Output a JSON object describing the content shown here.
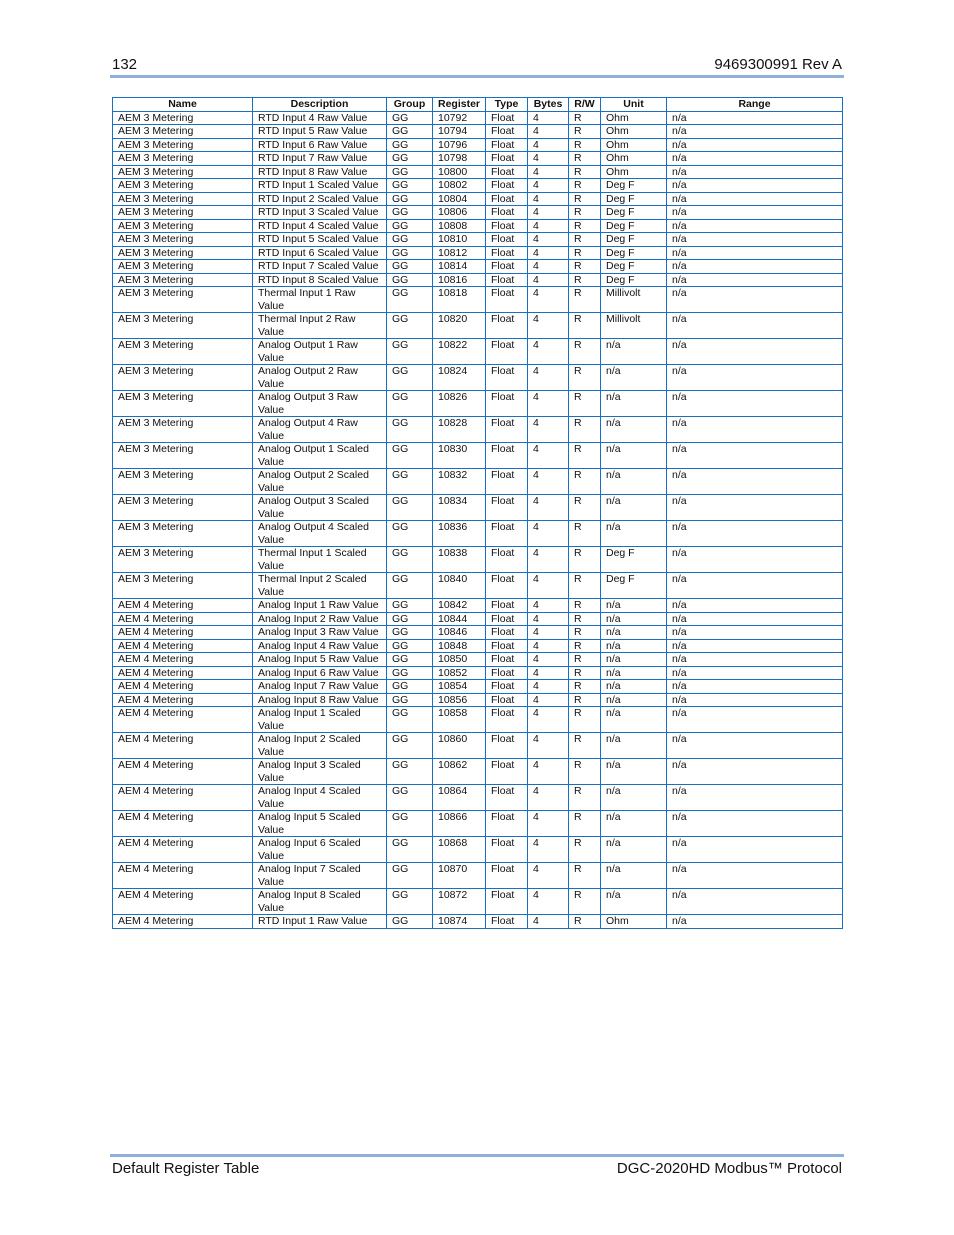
{
  "header": {
    "page_number": "132",
    "doc_id": "9469300991 Rev A"
  },
  "footer": {
    "left": "Default Register Table",
    "right": "DGC-2020HD Modbus™ Protocol"
  },
  "table": {
    "columns": [
      "Name",
      "Description",
      "Group",
      "Register",
      "Type",
      "Bytes",
      "R/W",
      "Unit",
      "Range"
    ],
    "rows": [
      [
        "AEM 3 Metering",
        "RTD Input 4 Raw Value",
        "GG",
        "10792",
        "Float",
        "4",
        "R",
        "Ohm",
        "n/a"
      ],
      [
        "AEM 3 Metering",
        "RTD Input 5 Raw Value",
        "GG",
        "10794",
        "Float",
        "4",
        "R",
        "Ohm",
        "n/a"
      ],
      [
        "AEM 3 Metering",
        "RTD Input 6 Raw Value",
        "GG",
        "10796",
        "Float",
        "4",
        "R",
        "Ohm",
        "n/a"
      ],
      [
        "AEM 3 Metering",
        "RTD Input 7 Raw Value",
        "GG",
        "10798",
        "Float",
        "4",
        "R",
        "Ohm",
        "n/a"
      ],
      [
        "AEM 3 Metering",
        "RTD Input 8 Raw Value",
        "GG",
        "10800",
        "Float",
        "4",
        "R",
        "Ohm",
        "n/a"
      ],
      [
        "AEM 3 Metering",
        "RTD Input 1 Scaled Value",
        "GG",
        "10802",
        "Float",
        "4",
        "R",
        "Deg F",
        "n/a"
      ],
      [
        "AEM 3 Metering",
        "RTD Input 2 Scaled Value",
        "GG",
        "10804",
        "Float",
        "4",
        "R",
        "Deg F",
        "n/a"
      ],
      [
        "AEM 3 Metering",
        "RTD Input 3 Scaled Value",
        "GG",
        "10806",
        "Float",
        "4",
        "R",
        "Deg F",
        "n/a"
      ],
      [
        "AEM 3 Metering",
        "RTD Input 4 Scaled Value",
        "GG",
        "10808",
        "Float",
        "4",
        "R",
        "Deg F",
        "n/a"
      ],
      [
        "AEM 3 Metering",
        "RTD Input 5 Scaled Value",
        "GG",
        "10810",
        "Float",
        "4",
        "R",
        "Deg F",
        "n/a"
      ],
      [
        "AEM 3 Metering",
        "RTD Input 6 Scaled Value",
        "GG",
        "10812",
        "Float",
        "4",
        "R",
        "Deg F",
        "n/a"
      ],
      [
        "AEM 3 Metering",
        "RTD Input 7 Scaled Value",
        "GG",
        "10814",
        "Float",
        "4",
        "R",
        "Deg F",
        "n/a"
      ],
      [
        "AEM 3 Metering",
        "RTD Input 8 Scaled Value",
        "GG",
        "10816",
        "Float",
        "4",
        "R",
        "Deg F",
        "n/a"
      ],
      [
        "AEM 3 Metering",
        "Thermal Input 1 Raw Value",
        "GG",
        "10818",
        "Float",
        "4",
        "R",
        "Millivolt",
        "n/a"
      ],
      [
        "AEM 3 Metering",
        "Thermal Input 2 Raw Value",
        "GG",
        "10820",
        "Float",
        "4",
        "R",
        "Millivolt",
        "n/a"
      ],
      [
        "AEM 3 Metering",
        "Analog Output 1 Raw Value",
        "GG",
        "10822",
        "Float",
        "4",
        "R",
        "n/a",
        "n/a"
      ],
      [
        "AEM 3 Metering",
        "Analog Output 2 Raw Value",
        "GG",
        "10824",
        "Float",
        "4",
        "R",
        "n/a",
        "n/a"
      ],
      [
        "AEM 3 Metering",
        "Analog Output 3 Raw Value",
        "GG",
        "10826",
        "Float",
        "4",
        "R",
        "n/a",
        "n/a"
      ],
      [
        "AEM 3 Metering",
        "Analog Output 4 Raw Value",
        "GG",
        "10828",
        "Float",
        "4",
        "R",
        "n/a",
        "n/a"
      ],
      [
        "AEM 3 Metering",
        "Analog Output 1 Scaled Value",
        "GG",
        "10830",
        "Float",
        "4",
        "R",
        "n/a",
        "n/a"
      ],
      [
        "AEM 3 Metering",
        "Analog Output 2 Scaled Value",
        "GG",
        "10832",
        "Float",
        "4",
        "R",
        "n/a",
        "n/a"
      ],
      [
        "AEM 3 Metering",
        "Analog Output 3 Scaled Value",
        "GG",
        "10834",
        "Float",
        "4",
        "R",
        "n/a",
        "n/a"
      ],
      [
        "AEM 3 Metering",
        "Analog Output 4 Scaled Value",
        "GG",
        "10836",
        "Float",
        "4",
        "R",
        "n/a",
        "n/a"
      ],
      [
        "AEM 3 Metering",
        "Thermal Input 1 Scaled Value",
        "GG",
        "10838",
        "Float",
        "4",
        "R",
        "Deg F",
        "n/a"
      ],
      [
        "AEM 3 Metering",
        "Thermal Input 2 Scaled Value",
        "GG",
        "10840",
        "Float",
        "4",
        "R",
        "Deg F",
        "n/a"
      ],
      [
        "AEM 4 Metering",
        "Analog Input 1 Raw Value",
        "GG",
        "10842",
        "Float",
        "4",
        "R",
        "n/a",
        "n/a"
      ],
      [
        "AEM 4 Metering",
        "Analog Input 2 Raw Value",
        "GG",
        "10844",
        "Float",
        "4",
        "R",
        "n/a",
        "n/a"
      ],
      [
        "AEM 4 Metering",
        "Analog Input 3 Raw Value",
        "GG",
        "10846",
        "Float",
        "4",
        "R",
        "n/a",
        "n/a"
      ],
      [
        "AEM 4 Metering",
        "Analog Input 4 Raw Value",
        "GG",
        "10848",
        "Float",
        "4",
        "R",
        "n/a",
        "n/a"
      ],
      [
        "AEM 4 Metering",
        "Analog Input 5 Raw Value",
        "GG",
        "10850",
        "Float",
        "4",
        "R",
        "n/a",
        "n/a"
      ],
      [
        "AEM 4 Metering",
        "Analog Input 6 Raw Value",
        "GG",
        "10852",
        "Float",
        "4",
        "R",
        "n/a",
        "n/a"
      ],
      [
        "AEM 4 Metering",
        "Analog Input 7 Raw Value",
        "GG",
        "10854",
        "Float",
        "4",
        "R",
        "n/a",
        "n/a"
      ],
      [
        "AEM 4 Metering",
        "Analog Input 8 Raw Value",
        "GG",
        "10856",
        "Float",
        "4",
        "R",
        "n/a",
        "n/a"
      ],
      [
        "AEM 4 Metering",
        "Analog Input 1 Scaled Value",
        "GG",
        "10858",
        "Float",
        "4",
        "R",
        "n/a",
        "n/a"
      ],
      [
        "AEM 4 Metering",
        "Analog Input 2 Scaled Value",
        "GG",
        "10860",
        "Float",
        "4",
        "R",
        "n/a",
        "n/a"
      ],
      [
        "AEM 4 Metering",
        "Analog Input 3 Scaled Value",
        "GG",
        "10862",
        "Float",
        "4",
        "R",
        "n/a",
        "n/a"
      ],
      [
        "AEM 4 Metering",
        "Analog Input 4 Scaled Value",
        "GG",
        "10864",
        "Float",
        "4",
        "R",
        "n/a",
        "n/a"
      ],
      [
        "AEM 4 Metering",
        "Analog Input 5 Scaled Value",
        "GG",
        "10866",
        "Float",
        "4",
        "R",
        "n/a",
        "n/a"
      ],
      [
        "AEM 4 Metering",
        "Analog Input 6 Scaled Value",
        "GG",
        "10868",
        "Float",
        "4",
        "R",
        "n/a",
        "n/a"
      ],
      [
        "AEM 4 Metering",
        "Analog Input 7 Scaled Value",
        "GG",
        "10870",
        "Float",
        "4",
        "R",
        "n/a",
        "n/a"
      ],
      [
        "AEM 4 Metering",
        "Analog Input 8 Scaled Value",
        "GG",
        "10872",
        "Float",
        "4",
        "R",
        "n/a",
        "n/a"
      ],
      [
        "AEM 4 Metering",
        "RTD Input 1 Raw Value",
        "GG",
        "10874",
        "Float",
        "4",
        "R",
        "Ohm",
        "n/a"
      ]
    ]
  },
  "colors": {
    "table_border": "#1a6fc0",
    "rule": "#93b1d6"
  }
}
